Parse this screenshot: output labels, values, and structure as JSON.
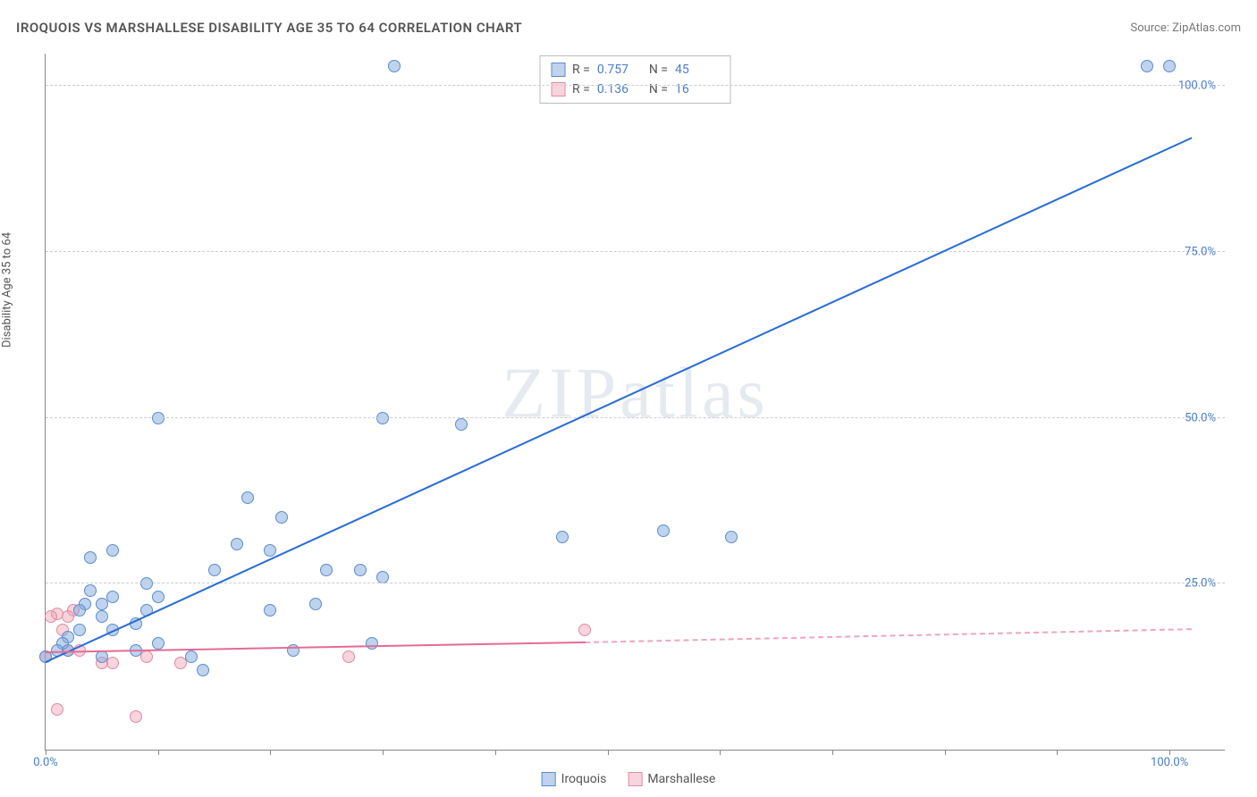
{
  "header": {
    "title": "IROQUOIS VS MARSHALLESE DISABILITY AGE 35 TO 64 CORRELATION CHART",
    "source_label": "Source: ",
    "source_name": "ZipAtlas.com"
  },
  "watermark": "ZIPatlas",
  "chart": {
    "type": "scatter",
    "y_axis_label": "Disability Age 35 to 64",
    "background_color": "#ffffff",
    "grid_color": "#cccccc",
    "axis_color": "#888888",
    "tick_label_color": "#4a7ec9",
    "xlim": [
      0,
      105
    ],
    "ylim": [
      0,
      105
    ],
    "y_ticks": [
      {
        "v": 25,
        "label": "25.0%"
      },
      {
        "v": 50,
        "label": "50.0%"
      },
      {
        "v": 75,
        "label": "75.0%"
      },
      {
        "v": 100,
        "label": "100.0%"
      }
    ],
    "x_ticks": [
      {
        "v": 0,
        "label": "0.0%"
      },
      {
        "v": 10,
        "label": ""
      },
      {
        "v": 20,
        "label": ""
      },
      {
        "v": 30,
        "label": ""
      },
      {
        "v": 40,
        "label": ""
      },
      {
        "v": 50,
        "label": ""
      },
      {
        "v": 60,
        "label": ""
      },
      {
        "v": 70,
        "label": ""
      },
      {
        "v": 80,
        "label": ""
      },
      {
        "v": 90,
        "label": ""
      },
      {
        "v": 100,
        "label": "100.0%"
      }
    ],
    "series": [
      {
        "name": "Iroquois",
        "marker_fill": "rgba(127,168,222,0.5)",
        "marker_stroke": "#5a8ccc",
        "line_color": "#2b6cd4",
        "line_width": 2,
        "marker_size": 14,
        "R": "0.757",
        "N": "45",
        "trend": {
          "x1": 0,
          "y1": 13,
          "x2": 102,
          "y2": 92,
          "dash_after_x": 105
        },
        "points": [
          [
            0,
            14
          ],
          [
            1,
            15
          ],
          [
            1.5,
            16
          ],
          [
            2,
            17
          ],
          [
            2,
            15
          ],
          [
            3,
            18
          ],
          [
            3,
            21
          ],
          [
            3.5,
            22
          ],
          [
            4,
            24
          ],
          [
            4,
            29
          ],
          [
            5,
            14
          ],
          [
            5,
            20
          ],
          [
            5,
            22
          ],
          [
            6,
            30
          ],
          [
            6,
            23
          ],
          [
            6,
            18
          ],
          [
            8,
            15
          ],
          [
            8,
            19
          ],
          [
            9,
            21
          ],
          [
            9,
            25
          ],
          [
            10,
            16
          ],
          [
            10,
            23
          ],
          [
            10,
            50
          ],
          [
            13,
            14
          ],
          [
            14,
            12
          ],
          [
            15,
            27
          ],
          [
            17,
            31
          ],
          [
            18,
            38
          ],
          [
            20,
            21
          ],
          [
            20,
            30
          ],
          [
            21,
            35
          ],
          [
            22,
            15
          ],
          [
            24,
            22
          ],
          [
            25,
            27
          ],
          [
            28,
            27
          ],
          [
            29,
            16
          ],
          [
            30,
            26
          ],
          [
            30,
            50
          ],
          [
            31,
            103
          ],
          [
            37,
            49
          ],
          [
            46,
            32
          ],
          [
            55,
            33
          ],
          [
            61,
            32
          ],
          [
            98,
            103
          ],
          [
            100,
            103
          ]
        ]
      },
      {
        "name": "Marshallese",
        "marker_fill": "rgba(240,160,180,0.45)",
        "marker_stroke": "#e08aa5",
        "line_color": "#e56b94",
        "line_width": 2,
        "marker_size": 14,
        "R": "0.136",
        "N": "16",
        "trend": {
          "x1": 0,
          "y1": 14.5,
          "x2": 48,
          "y2": 16,
          "dash_after_x": 48,
          "dash_x2": 102,
          "dash_y2": 18
        },
        "points": [
          [
            0,
            14
          ],
          [
            0.5,
            20
          ],
          [
            1,
            20.5
          ],
          [
            1,
            6
          ],
          [
            1.5,
            18
          ],
          [
            2,
            20
          ],
          [
            2,
            15
          ],
          [
            2.5,
            21
          ],
          [
            3,
            15
          ],
          [
            5,
            13
          ],
          [
            6,
            13
          ],
          [
            8,
            5
          ],
          [
            9,
            14
          ],
          [
            12,
            13
          ],
          [
            27,
            14
          ],
          [
            48,
            18
          ]
        ]
      }
    ]
  },
  "legend_stats": {
    "r_label": "R =",
    "n_label": "N ="
  },
  "bottom_legend": {
    "items": [
      "Iroquois",
      "Marshallese"
    ]
  }
}
